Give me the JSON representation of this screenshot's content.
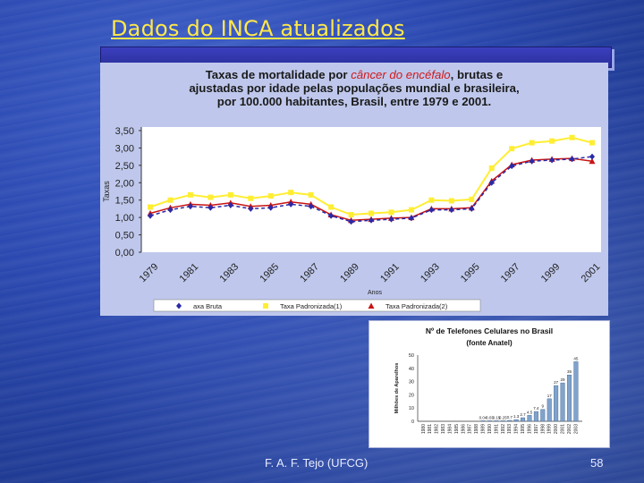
{
  "slide": {
    "title": "Dados do INCA atualizados",
    "footer": "F. A. F. Tejo (UFCG)",
    "page_number": "58"
  },
  "colors": {
    "title": "#ffe84a",
    "series_bruta": "#2a2aa8",
    "series_mundial": "#ffee33",
    "series_brasileira": "#c81414",
    "highlight": "#d01818",
    "bars": "#7fa3cc"
  },
  "chart_data": [
    {
      "type": "line",
      "title_parts": {
        "pre": "Taxas de mortalidade por ",
        "highlight": "câncer do encéfalo",
        "post": ", brutas e",
        "line2": "ajustadas por idade pelas populações mundial e brasileira,",
        "line3": "por 100.000 habitantes, Brasil, entre 1979 e 2001."
      },
      "xlabel": "Anos",
      "ylabel": "Taxas",
      "ylim": [
        0,
        3.5
      ],
      "yticks": [
        "0,00",
        "0,50",
        "1,00",
        "1,50",
        "2,00",
        "2,50",
        "3,00",
        "3,50"
      ],
      "x": [
        1979,
        1980,
        1981,
        1982,
        1983,
        1984,
        1985,
        1986,
        1987,
        1988,
        1989,
        1990,
        1991,
        1992,
        1993,
        1994,
        1995,
        1996,
        1997,
        1998,
        1999,
        2000,
        2001
      ],
      "xtick_labels": [
        "1979",
        "1981",
        "1983",
        "1985",
        "1987",
        "1989",
        "1991",
        "1993",
        "1995",
        "1997",
        "1999",
        "2001"
      ],
      "series": [
        {
          "name": "axa Bruta",
          "values": [
            1.05,
            1.22,
            1.32,
            1.28,
            1.35,
            1.25,
            1.28,
            1.38,
            1.32,
            1.05,
            0.88,
            0.92,
            0.95,
            0.98,
            1.22,
            1.22,
            1.25,
            2.0,
            2.48,
            2.62,
            2.65,
            2.68,
            2.75
          ]
        },
        {
          "name": "Taxa Padronizada(1)",
          "values": [
            1.3,
            1.5,
            1.65,
            1.58,
            1.65,
            1.55,
            1.62,
            1.72,
            1.65,
            1.3,
            1.08,
            1.12,
            1.15,
            1.22,
            1.5,
            1.48,
            1.52,
            2.42,
            2.98,
            3.15,
            3.2,
            3.3,
            3.15
          ]
        },
        {
          "name": "Taxa Padronizada(2)",
          "values": [
            1.12,
            1.28,
            1.38,
            1.35,
            1.42,
            1.32,
            1.35,
            1.45,
            1.38,
            1.08,
            0.92,
            0.95,
            0.98,
            1.0,
            1.25,
            1.25,
            1.28,
            2.05,
            2.52,
            2.65,
            2.68,
            2.7,
            2.62
          ]
        }
      ],
      "grid": false,
      "legend_position": "bottom"
    },
    {
      "type": "bar",
      "title": "Nº de Telefones Celulares no Brasil",
      "subtitle": "(fonte Anatel)",
      "ylabel": "Milhões de Aparelhos",
      "ylim": [
        0,
        50
      ],
      "yticks": [
        "0",
        "10",
        "20",
        "30",
        "40",
        "50"
      ],
      "categories": [
        "1980",
        "1981",
        "1982",
        "1983",
        "1984",
        "1985",
        "1986",
        "1987",
        "1988",
        "1989",
        "1990",
        "1991",
        "1992",
        "1993",
        "1994",
        "1995",
        "1996",
        "1997",
        "1998",
        "1999",
        "2000",
        "2001",
        "2002",
        "2003"
      ],
      "values": [
        0,
        0,
        0,
        0,
        0,
        0,
        0,
        0,
        0,
        0.04,
        0.03,
        0.15,
        0.25,
        0.7,
        1.3,
        2.7,
        4.5,
        7.4,
        9,
        17,
        27,
        29,
        35,
        45
      ],
      "data_labels": [
        "",
        "",
        "",
        "",
        "",
        "",
        "",
        "",
        "",
        "0.04",
        "0.03",
        "0.15",
        "0.25",
        "0.7",
        "1.3",
        "2.7",
        "4.5",
        "7.4",
        "9",
        "17",
        "27",
        "29",
        "35",
        "45"
      ]
    }
  ]
}
